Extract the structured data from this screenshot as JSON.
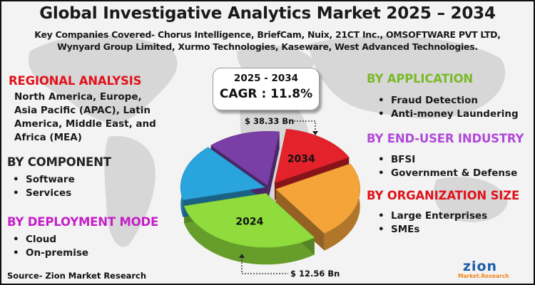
{
  "title": "Global Investigative Analytics Market 2025 – 2034",
  "companies": "Key Companies Covered- Chorus Intelligence, BriefCam, Nuix, 21CT Inc., OMSOFTWARE PVT LTD, Wynyard Group Limited, Xurmo Technologies, Kaseware, West Advanced Technologies.",
  "sections": {
    "regional": {
      "heading": "REGIONAL ANALYSIS",
      "text": "North America, Europe, Asia Pacific (APAC), Latin America, Middle East, and Africa (MEA)",
      "color": "#e0131c"
    },
    "component": {
      "heading": "BY COMPONENT",
      "items": [
        "Software",
        "Services"
      ],
      "color": "#222222"
    },
    "deployment": {
      "heading": "BY DEPLOYMENT MODE",
      "items": [
        "Cloud",
        "On-premise"
      ],
      "color": "#c41fc8"
    },
    "application": {
      "heading": "BY APPLICATION",
      "items": [
        "Fraud Detection",
        "Anti-money Laundering"
      ],
      "color": "#7ab92a"
    },
    "end_user": {
      "heading": "BY END-USER INDUSTRY",
      "items": [
        "BFSI",
        "Government & Defense"
      ],
      "color": "#b04ad8"
    },
    "org_size": {
      "heading": "BY ORGANIZATION SIZE",
      "items": [
        "Large Enterprises",
        "SMEs"
      ],
      "color": "#e0131c"
    }
  },
  "cagr": {
    "period": "2025 - 2034",
    "value": "CAGR : 11.8%"
  },
  "chart_data": {
    "type": "pie",
    "style": "3d-exploded",
    "slices": [
      {
        "label": "2034",
        "value": 38.33,
        "value_label": "$ 38.33 Bn",
        "color": "#e3222b"
      },
      {
        "label": "",
        "value": 17,
        "color": "#f5a43a"
      },
      {
        "label": "2024",
        "value": 12.56,
        "value_label": "$ 12.56 Bn",
        "color": "#8fdc3c"
      },
      {
        "label": "",
        "value": 11,
        "color": "#29a4dc"
      },
      {
        "label": "",
        "value": 9,
        "color": "#7a3fa6"
      }
    ],
    "slice_fractions": [
      0.15,
      0.23,
      0.31,
      0.17,
      0.14
    ]
  },
  "source": "Source- Zion Market Research",
  "logo": {
    "main": "zion",
    "sub": "Market.Research"
  },
  "colors": {
    "background": "#f3f3f3",
    "map": "#d6d6d6",
    "logo_blue": "#1d5da8",
    "logo_orange": "#f0851b"
  }
}
